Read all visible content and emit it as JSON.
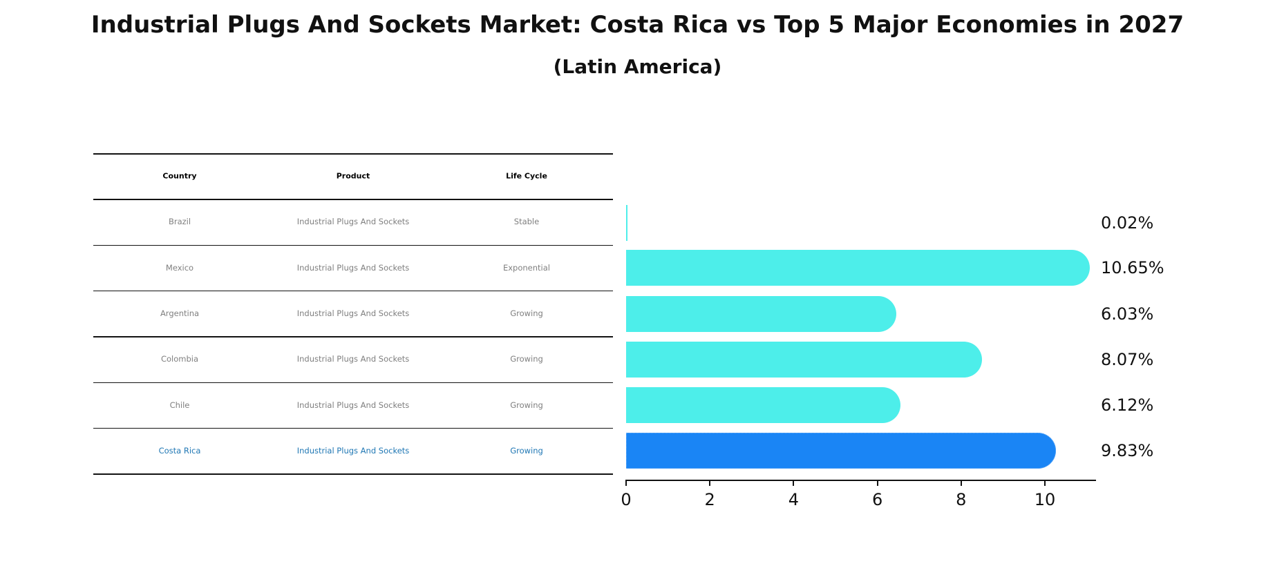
{
  "title": "Industrial Plugs And Sockets Market: Costa Rica vs Top 5 Major Economies in 2027",
  "subtitle": "(Latin America)",
  "table": {
    "headers": [
      "Country",
      "Product",
      "Life Cycle"
    ],
    "rows": [
      {
        "country": "Brazil",
        "product": "Industrial Plugs And Sockets",
        "life_cycle": "Stable",
        "highlight": false
      },
      {
        "country": "Mexico",
        "product": "Industrial Plugs And Sockets",
        "life_cycle": "Exponential",
        "highlight": false
      },
      {
        "country": "Argentina",
        "product": "Industrial Plugs And Sockets",
        "life_cycle": "Growing",
        "highlight": false
      },
      {
        "country": "Colombia",
        "product": "Industrial Plugs And Sockets",
        "life_cycle": "Growing",
        "highlight": false
      },
      {
        "country": "Chile",
        "product": "Industrial Plugs And Sockets",
        "life_cycle": "Growing",
        "highlight": false
      },
      {
        "country": "Costa Rica",
        "product": "Industrial Plugs And Sockets",
        "life_cycle": "Growing",
        "highlight": true
      }
    ]
  },
  "colors": {
    "bar": "#4deeea",
    "bar_highlight": "#1a85f5",
    "text_muted": "#7f7f7f",
    "text_highlight": "#1f77b4"
  },
  "chart_data": {
    "type": "bar",
    "orientation": "horizontal",
    "title": "Industrial Plugs And Sockets Market: Costa Rica vs Top 5 Major Economies in 2027",
    "subtitle": "(Latin America)",
    "categories": [
      "Brazil",
      "Mexico",
      "Argentina",
      "Colombia",
      "Chile",
      "Costa Rica"
    ],
    "values": [
      0.02,
      10.65,
      6.03,
      8.07,
      6.12,
      9.83
    ],
    "value_labels": [
      "0.02%",
      "10.65%",
      "6.03%",
      "8.07%",
      "6.12%",
      "9.83%"
    ],
    "highlight_category": "Costa Rica",
    "xlabel": "",
    "ylabel": "",
    "xlim": [
      0,
      11.2
    ],
    "xticks": [
      0,
      2,
      4,
      6,
      8,
      10
    ],
    "grid": false,
    "legend": "none"
  }
}
